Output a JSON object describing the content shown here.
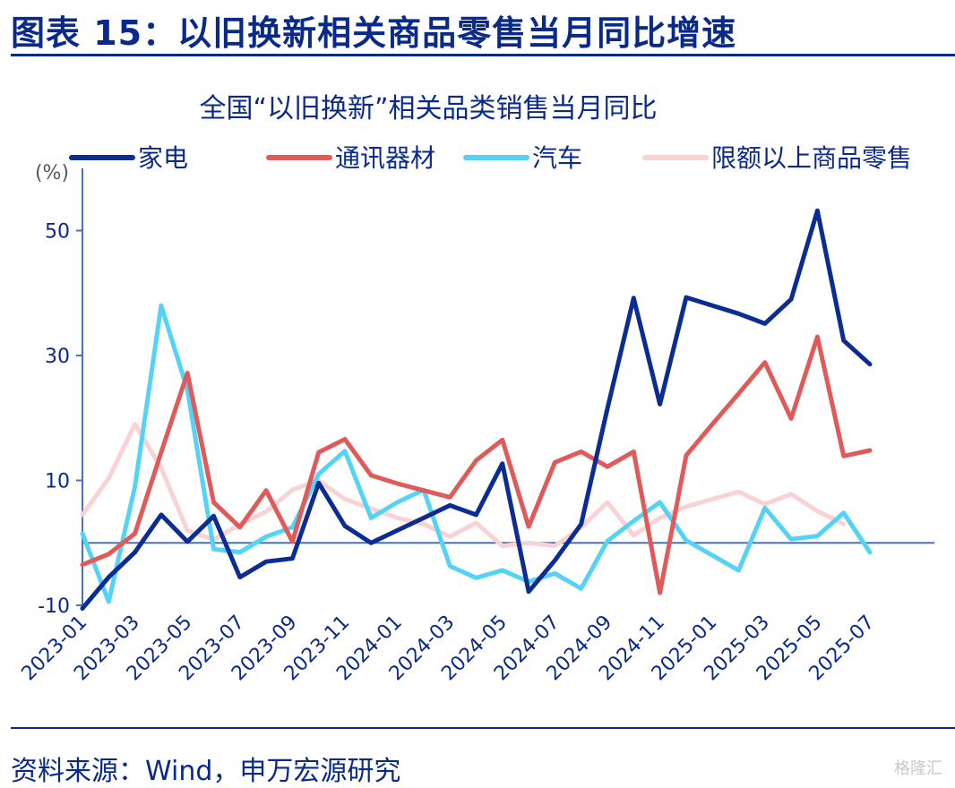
{
  "figure": {
    "title": "图表 15：以旧换新相关商品零售当月同比增速",
    "source": "资料来源：Wind，申万宏源研究",
    "watermark": "格隆汇"
  },
  "chart_data": {
    "type": "line",
    "title": "全国“以旧换新”相关品类销售当月同比",
    "ylabel": "(%)",
    "ylim": [
      -10,
      55
    ],
    "yticks": [
      -10,
      10,
      30,
      50
    ],
    "legend_position": "top",
    "x": [
      "2023-01",
      "2023-02",
      "2023-03",
      "2023-04",
      "2023-05",
      "2023-06",
      "2023-07",
      "2023-08",
      "2023-09",
      "2023-10",
      "2023-11",
      "2023-12",
      "2024-01",
      "2024-02",
      "2024-03",
      "2024-04",
      "2024-05",
      "2024-06",
      "2024-07",
      "2024-08",
      "2024-09",
      "2024-10",
      "2024-11",
      "2024-12",
      "2025-01",
      "2025-02",
      "2025-03",
      "2025-04",
      "2025-05",
      "2025-06",
      "2025-07"
    ],
    "xticklabels": [
      "2023-01",
      "2023-03",
      "2023-05",
      "2023-07",
      "2023-09",
      "2023-11",
      "2024-01",
      "2024-03",
      "2024-05",
      "2024-07",
      "2024-09",
      "2024-11",
      "2025-01",
      "2025-03",
      "2025-05",
      "2025-07"
    ],
    "series": [
      {
        "name": "家电",
        "color": "#0b2d93",
        "width": 5,
        "values": [
          -10.5,
          -5.5,
          -1.5,
          4.5,
          0.2,
          4.3,
          -5.5,
          -3,
          -2.5,
          9.6,
          2.7,
          0,
          2,
          4,
          6,
          4.5,
          12.7,
          -7.8,
          -2.8,
          3,
          21.5,
          39.2,
          22.2,
          39.3,
          38,
          36.7,
          35.1,
          39,
          53.2,
          32.4,
          28.6
        ]
      },
      {
        "name": "通讯器材",
        "color": "#e05a5a",
        "width": 5,
        "values": [
          -3.5,
          -1.8,
          1.5,
          14.5,
          27.2,
          6.5,
          2.5,
          8.4,
          0.2,
          14.5,
          16.6,
          10.8,
          9.5,
          8.4,
          7.3,
          13.2,
          16.5,
          2.6,
          12.9,
          14.6,
          12.2,
          14.6,
          -8,
          14,
          19,
          23.9,
          28.9,
          19.9,
          33,
          13.9,
          14.8
        ]
      },
      {
        "name": "汽车",
        "color": "#55d3f7",
        "width": 5,
        "values": [
          1.5,
          -9.4,
          9,
          38,
          24.5,
          -1,
          -1.5,
          1,
          2.5,
          11,
          14.7,
          4,
          6.5,
          8.5,
          -3.7,
          -5.6,
          -4.4,
          -6.2,
          -4.9,
          -7.3,
          0.3,
          3.5,
          6.5,
          0.4,
          -2,
          -4.4,
          5.6,
          0.6,
          1.1,
          4.8,
          -1.5
        ]
      },
      {
        "name": "限额以上商品零售",
        "color": "#f9d3d3",
        "width": 5,
        "values": [
          4.5,
          10.3,
          19,
          12,
          2,
          0.5,
          3,
          5,
          8.5,
          10,
          7,
          5.5,
          4,
          3,
          1,
          3.2,
          -0.5,
          0,
          -0.5,
          2.5,
          6.5,
          1.2,
          4,
          5.8,
          7,
          8.2,
          6.2,
          7.8,
          5.1,
          3,
          null
        ]
      }
    ]
  }
}
